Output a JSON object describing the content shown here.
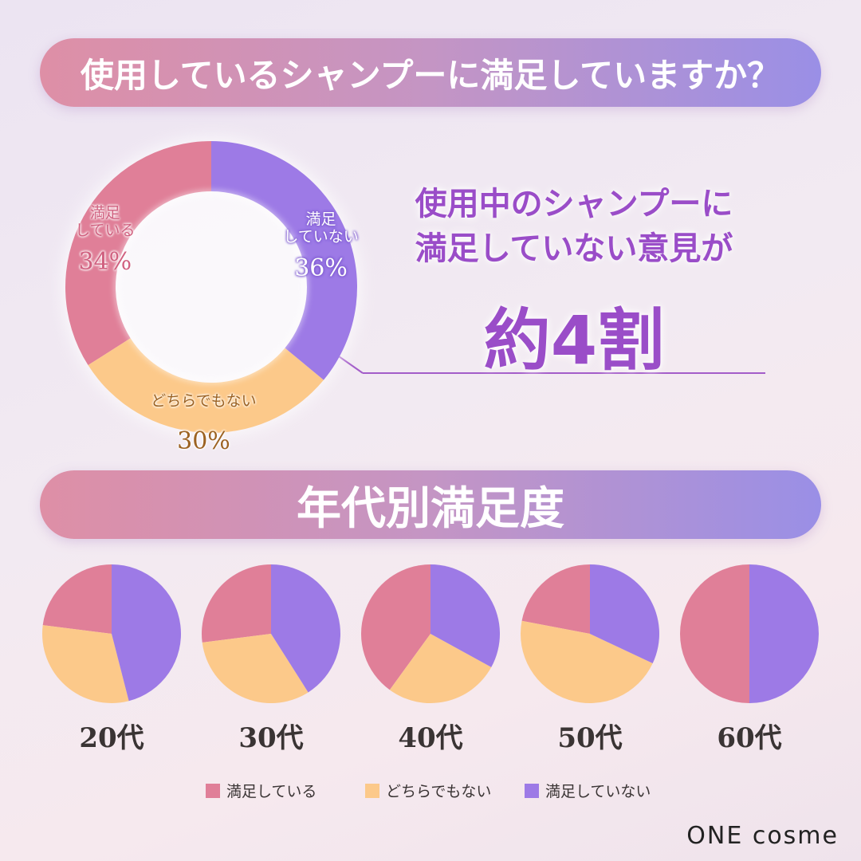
{
  "chart_data": [
    {
      "type": "donut",
      "title": "使用しているシャンプーに満足していますか？",
      "categories": [
        "満足\nしている",
        "どちらでもない",
        "満足\nしていない"
      ],
      "values": [
        34,
        30,
        36
      ],
      "value_labels": [
        "34%",
        "30%",
        "36%"
      ],
      "colors": [
        "#e07f98",
        "#fcc98a",
        "#9d7ae6"
      ],
      "callout": {
        "text": "使用中のシャンプーに\n満足していない意見が",
        "emphasis": "約4割"
      }
    },
    {
      "type": "pie",
      "title": "年代別満足度",
      "categories": [
        "20代",
        "30代",
        "40代",
        "50代",
        "60代"
      ],
      "series": [
        {
          "name": "満足している",
          "color": "#e07f98",
          "values": [
            23,
            27,
            40,
            22,
            50
          ]
        },
        {
          "name": "どちらでもない",
          "color": "#fcc98a",
          "values": [
            31,
            32,
            27,
            46,
            0
          ]
        },
        {
          "name": "満足していない",
          "color": "#9d7ae6",
          "values": [
            46,
            41,
            33,
            32,
            50
          ]
        }
      ],
      "legend": "bottom"
    }
  ],
  "brand": "ONE cosme"
}
